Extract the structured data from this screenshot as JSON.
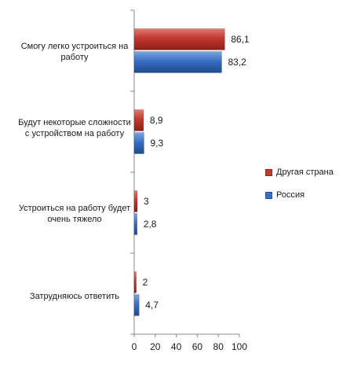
{
  "chart_data": {
    "type": "bar",
    "orientation": "horizontal",
    "categories": [
      "Смогу легко устроиться на работу",
      "Будут некоторые сложности с устройством на работу",
      "Устроиться на работу будет очень тяжело",
      "Затрудняюсь ответить"
    ],
    "series": [
      {
        "name": "Другая страна",
        "color": "#c0392f",
        "values": [
          86.1,
          8.9,
          3,
          2
        ],
        "labels": [
          "86,1",
          "8,9",
          "3",
          "2"
        ]
      },
      {
        "name": "Россия",
        "color": "#3a6fc1",
        "values": [
          83.2,
          9.3,
          2.8,
          4.7
        ],
        "labels": [
          "83,2",
          "9,3",
          "2,8",
          "4,7"
        ]
      }
    ],
    "xlim": [
      0,
      100
    ],
    "xticks": [
      "0",
      "20",
      "40",
      "60",
      "80",
      "100"
    ],
    "grid": false,
    "legend_position": "right"
  }
}
